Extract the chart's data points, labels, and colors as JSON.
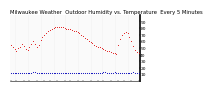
{
  "title": "Milwaukee Weather  Outdoor Humidity vs. Temperature  Every 5 Minutes",
  "bg_color": "#ffffff",
  "plot_bg": "#ffffff",
  "grid_color": "#aaaaaa",
  "temp_color": "#dd0000",
  "humidity_color": "#0000bb",
  "ylim": [
    0,
    100
  ],
  "ytick_vals": [
    10,
    20,
    30,
    40,
    50,
    60,
    70,
    80,
    90
  ],
  "temp_data": [
    55,
    52,
    48,
    46,
    50,
    52,
    56,
    53,
    49,
    47,
    52,
    56,
    60,
    56,
    52,
    55,
    62,
    67,
    70,
    73,
    75,
    77,
    78,
    80,
    81,
    82,
    82,
    82,
    81,
    80,
    79,
    78,
    78,
    77,
    76,
    75,
    74,
    72,
    70,
    68,
    65,
    63,
    61,
    59,
    57,
    55,
    53,
    52,
    51,
    50,
    48,
    47,
    46,
    45,
    44,
    43,
    42,
    41,
    55,
    64,
    70,
    73,
    74,
    72,
    67,
    60,
    53,
    47,
    44,
    42
  ],
  "humidity_data": [
    12,
    12,
    12,
    12,
    12,
    12,
    12,
    12,
    12,
    12,
    12,
    12,
    14,
    14,
    12,
    12,
    12,
    12,
    12,
    12,
    12,
    12,
    12,
    12,
    12,
    12,
    12,
    12,
    12,
    12,
    12,
    12,
    12,
    12,
    12,
    12,
    12,
    12,
    12,
    12,
    12,
    12,
    12,
    12,
    12,
    12,
    12,
    12,
    12,
    12,
    14,
    14,
    12,
    12,
    12,
    12,
    14,
    12,
    12,
    12,
    12,
    12,
    12,
    12,
    12,
    12,
    14,
    12,
    12,
    12
  ],
  "n_points": 70,
  "title_fontsize": 3.8,
  "xtick_fontsize": 2.8,
  "ytick_fontsize": 3.2,
  "dot_size": 1.5,
  "hum_dot_size": 2.5
}
